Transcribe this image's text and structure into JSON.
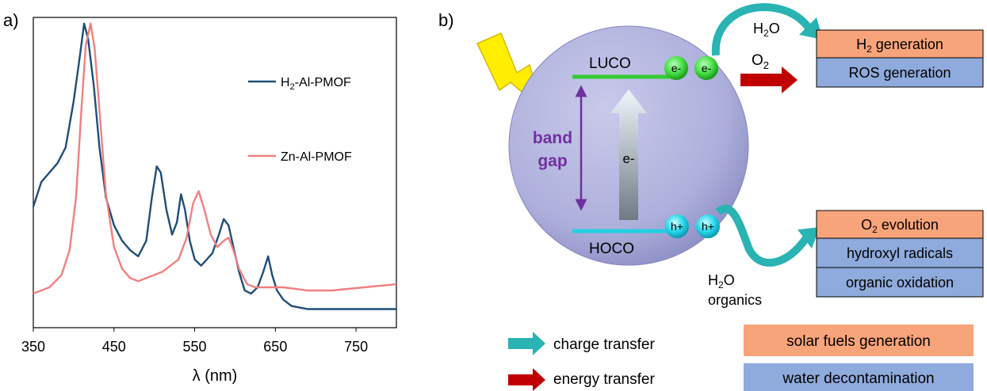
{
  "panel_a": {
    "label": "a)"
  },
  "panel_b": {
    "label": "b)",
    "luco_label": "LUCO",
    "hoco_label": "HOCO",
    "band_gap_label_1": "band",
    "band_gap_label_2": "gap",
    "electron_label": "e-",
    "electron_arrow_label": "e-",
    "hole_label": "h+",
    "top_reactant": "H",
    "top_reactant_sub": "2",
    "top_reactant_tail": "O",
    "o2_reactant": "O",
    "o2_reactant_sub": "2",
    "bottom_reactant_line1": "H",
    "bottom_reactant_line1_sub": "2",
    "bottom_reactant_line1_tail": "O",
    "bottom_reactant_line2": "organics",
    "box_h2_main": "H",
    "box_h2_sub": "2",
    "box_h2_tail": " generation",
    "box_ros": "ROS generation",
    "box_o2_main": "O",
    "box_o2_sub": "2",
    "box_o2_tail": " evolution",
    "box_hydroxyl": "hydroxyl radicals",
    "box_organic": "organic oxidation",
    "legend_charge": "charge transfer",
    "legend_energy": "energy transfer",
    "legend_solar": "solar fuels generation",
    "legend_water": "water decontamination"
  },
  "colors": {
    "h2_series": "#1f4e79",
    "zn_series": "#f08080",
    "teal": "#2ab3b3",
    "red_arrow": "#c00000",
    "orange_box": "#f8a47a",
    "blue_box": "#8faadc",
    "green_level": "#33cc33",
    "cyan_level": "#22d0e0",
    "purple": "#7030a0",
    "sphere": "#b3b3dd"
  },
  "chart_data": {
    "type": "line",
    "xlabel": "λ (nm)",
    "ylabel": "",
    "xlim": [
      350,
      800
    ],
    "xticks": [
      "350",
      "450",
      "550",
      "650",
      "750"
    ],
    "ylim": [
      0,
      1
    ],
    "yticks": [],
    "grid": false,
    "legend_position": "right",
    "series": [
      {
        "name": "H",
        "name_sub": "2",
        "name_tail": "-Al-PMOF",
        "color": "#1f4e79",
        "points": [
          [
            350,
            0.39
          ],
          [
            360,
            0.47
          ],
          [
            370,
            0.5
          ],
          [
            380,
            0.53
          ],
          [
            390,
            0.58
          ],
          [
            400,
            0.73
          ],
          [
            408,
            0.88
          ],
          [
            413,
            0.98
          ],
          [
            418,
            0.93
          ],
          [
            425,
            0.78
          ],
          [
            432,
            0.58
          ],
          [
            440,
            0.42
          ],
          [
            450,
            0.33
          ],
          [
            460,
            0.28
          ],
          [
            470,
            0.25
          ],
          [
            480,
            0.23
          ],
          [
            490,
            0.28
          ],
          [
            497,
            0.42
          ],
          [
            503,
            0.52
          ],
          [
            508,
            0.5
          ],
          [
            515,
            0.38
          ],
          [
            522,
            0.3
          ],
          [
            528,
            0.34
          ],
          [
            533,
            0.43
          ],
          [
            538,
            0.38
          ],
          [
            544,
            0.28
          ],
          [
            550,
            0.22
          ],
          [
            558,
            0.2
          ],
          [
            565,
            0.22
          ],
          [
            572,
            0.24
          ],
          [
            580,
            0.3
          ],
          [
            586,
            0.35
          ],
          [
            592,
            0.33
          ],
          [
            598,
            0.26
          ],
          [
            605,
            0.18
          ],
          [
            612,
            0.12
          ],
          [
            620,
            0.11
          ],
          [
            628,
            0.13
          ],
          [
            635,
            0.18
          ],
          [
            641,
            0.23
          ],
          [
            646,
            0.17
          ],
          [
            652,
            0.12
          ],
          [
            660,
            0.09
          ],
          [
            670,
            0.07
          ],
          [
            690,
            0.06
          ],
          [
            720,
            0.06
          ],
          [
            760,
            0.06
          ],
          [
            800,
            0.06
          ]
        ]
      },
      {
        "name": "Zn-Al-PMOF",
        "color": "#f08080",
        "points": [
          [
            350,
            0.11
          ],
          [
            370,
            0.13
          ],
          [
            385,
            0.17
          ],
          [
            395,
            0.25
          ],
          [
            403,
            0.42
          ],
          [
            410,
            0.72
          ],
          [
            415,
            0.91
          ],
          [
            421,
            0.98
          ],
          [
            426,
            0.9
          ],
          [
            432,
            0.7
          ],
          [
            440,
            0.43
          ],
          [
            450,
            0.26
          ],
          [
            460,
            0.19
          ],
          [
            470,
            0.16
          ],
          [
            480,
            0.15
          ],
          [
            490,
            0.16
          ],
          [
            500,
            0.17
          ],
          [
            510,
            0.18
          ],
          [
            520,
            0.2
          ],
          [
            530,
            0.22
          ],
          [
            540,
            0.29
          ],
          [
            548,
            0.4
          ],
          [
            555,
            0.44
          ],
          [
            562,
            0.38
          ],
          [
            570,
            0.3
          ],
          [
            578,
            0.26
          ],
          [
            586,
            0.28
          ],
          [
            592,
            0.29
          ],
          [
            598,
            0.25
          ],
          [
            605,
            0.19
          ],
          [
            615,
            0.14
          ],
          [
            625,
            0.13
          ],
          [
            640,
            0.13
          ],
          [
            660,
            0.13
          ],
          [
            690,
            0.12
          ],
          [
            720,
            0.12
          ],
          [
            760,
            0.13
          ],
          [
            800,
            0.14
          ]
        ]
      }
    ]
  }
}
